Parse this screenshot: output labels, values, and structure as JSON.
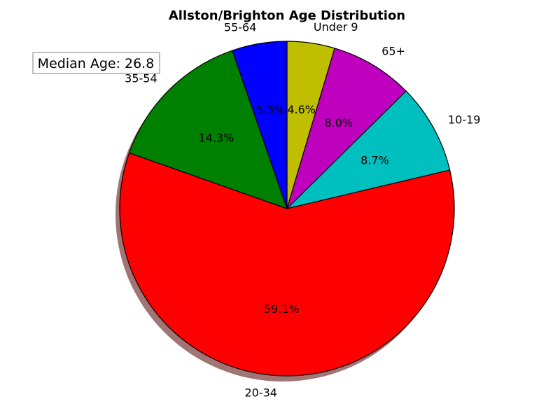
{
  "chart_data": {
    "type": "pie",
    "title": "Allston/Brighton Age Distribution",
    "categories": [
      "Under 9",
      "10-19",
      "20-34",
      "35-54",
      "55-64",
      "65+"
    ],
    "values": [
      4.6,
      8.7,
      59.1,
      14.3,
      5.3,
      8.0
    ],
    "value_labels": [
      "4.6%",
      "8.7%",
      "59.1%",
      "14.3%",
      "5.3%",
      "8.0%"
    ],
    "colors": [
      "#bfbf00",
      "#00bfbf",
      "#ff0000",
      "#008000",
      "#0000ff",
      "#bf00bf"
    ],
    "slice_order": [
      "Under 9",
      "65+",
      "10-19",
      "20-34",
      "35-54",
      "55-64"
    ],
    "start_angle_deg": 90,
    "direction": "clockwise",
    "shadow": true,
    "legend": "none",
    "annotation": "Median Age: 26.8"
  }
}
